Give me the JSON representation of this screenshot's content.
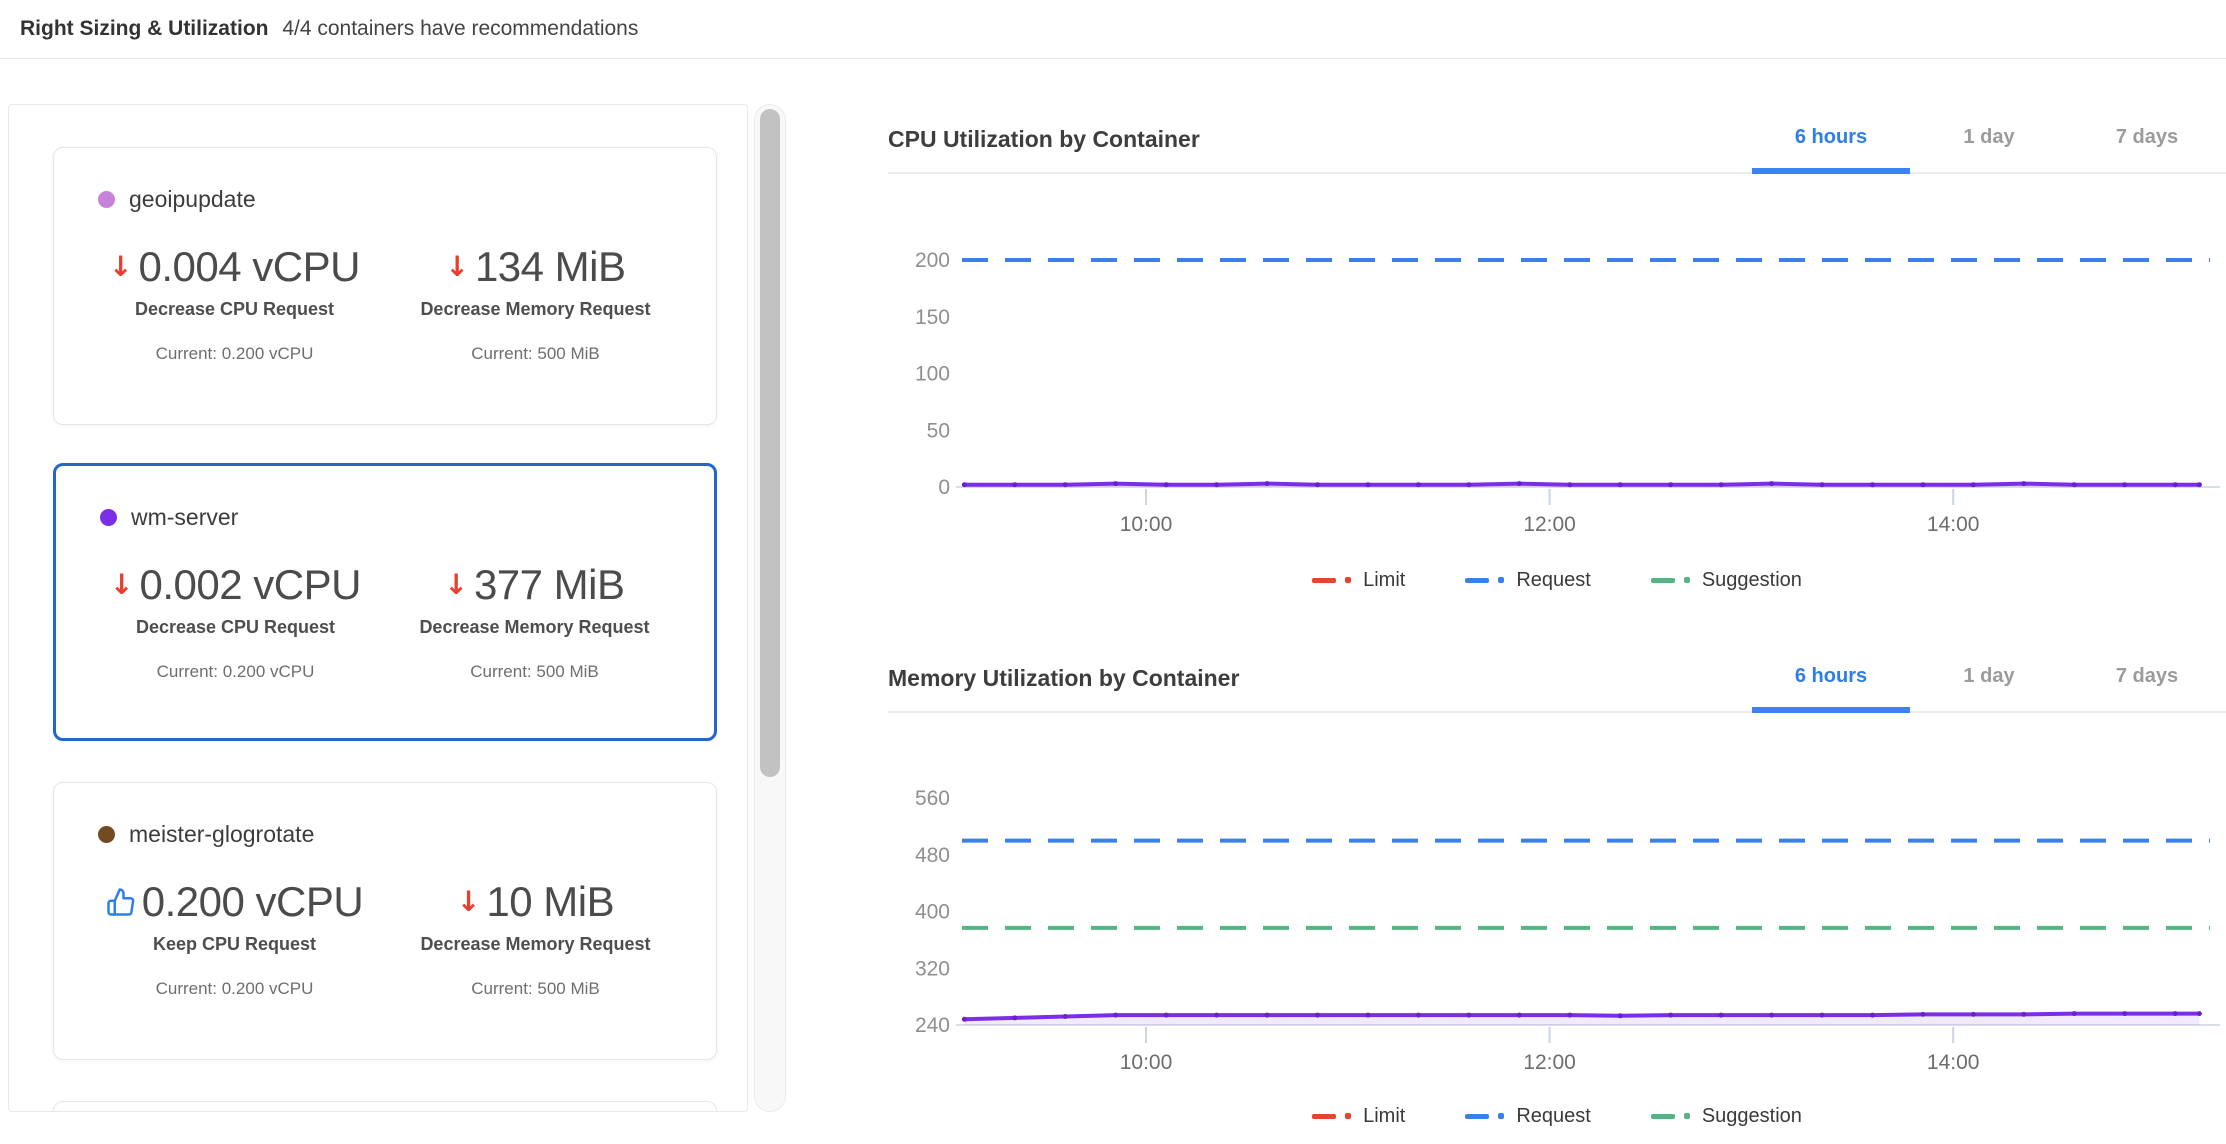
{
  "header": {
    "title": "Right Sizing & Utilization",
    "subtitle": "4/4 containers have recommendations"
  },
  "sidebar": {
    "cards": [
      {
        "name": "geoipupdate",
        "dot_color": "#c583d9",
        "selected": false,
        "cpu": {
          "direction": "decrease",
          "value": "0.004 vCPU",
          "action": "Decrease CPU Request",
          "current": "Current: 0.200 vCPU"
        },
        "memory": {
          "direction": "decrease",
          "value": "134 MiB",
          "action": "Decrease Memory Request",
          "current": "Current: 500 MiB"
        }
      },
      {
        "name": "wm-server",
        "dot_color": "#7a2ee8",
        "selected": true,
        "cpu": {
          "direction": "decrease",
          "value": "0.002 vCPU",
          "action": "Decrease CPU Request",
          "current": "Current: 0.200 vCPU"
        },
        "memory": {
          "direction": "decrease",
          "value": "377 MiB",
          "action": "Decrease Memory Request",
          "current": "Current: 500 MiB"
        }
      },
      {
        "name": "meister-glogrotate",
        "dot_color": "#734a21",
        "selected": false,
        "cpu": {
          "direction": "keep",
          "value": "0.200 vCPU",
          "action": "Keep CPU Request",
          "current": "Current: 0.200 vCPU"
        },
        "memory": {
          "direction": "decrease",
          "value": "10 MiB",
          "action": "Decrease Memory Request",
          "current": "Current: 500 MiB"
        }
      }
    ]
  },
  "tabs": {
    "options": [
      "6 hours",
      "1 day",
      "7 days"
    ],
    "active": "6 hours"
  },
  "cpu_chart": {
    "title": "CPU Utilization by Container"
  },
  "memory_chart": {
    "title": "Memory Utilization by Container"
  },
  "legend": {
    "items": [
      {
        "label": "Limit",
        "color": "#e8432c"
      },
      {
        "label": "Request",
        "color": "#3b7fe8"
      },
      {
        "label": "Suggestion",
        "color": "#53b584"
      }
    ]
  },
  "colors": {
    "accent_blue": "#2e7de9",
    "tab_underline": "#3b82f6",
    "selected_card_border": "#2266cc",
    "usage_purple": "#7a2ee8",
    "arrow_red": "#e8402e",
    "thumb_blue": "#2b7ff2"
  },
  "chart_data": [
    {
      "id": "cpu",
      "type": "line",
      "title": "CPU Utilization by Container",
      "time_range": "6 hours",
      "y_unit": "millicores (0.001 vCPU)",
      "ylim": [
        0,
        230
      ],
      "yticks": [
        0,
        50,
        100,
        150,
        200
      ],
      "xticks": [
        {
          "t": 10,
          "label": "10:00"
        },
        {
          "t": 12,
          "label": "12:00"
        },
        {
          "t": 14,
          "label": "14:00"
        }
      ],
      "grid": false,
      "legend_entries": [
        "Limit",
        "Request",
        "Suggestion"
      ],
      "ref_lines": [
        {
          "name": "Request",
          "value": 200,
          "color": "#3b7fe8"
        }
      ],
      "series": [
        {
          "name": "wm-server usage",
          "color": "#7a2ee8",
          "points": [
            [
              9.1,
              2
            ],
            [
              9.35,
              2
            ],
            [
              9.6,
              2
            ],
            [
              9.85,
              3
            ],
            [
              10.1,
              2
            ],
            [
              10.35,
              2
            ],
            [
              10.6,
              3
            ],
            [
              10.85,
              2
            ],
            [
              11.1,
              2
            ],
            [
              11.35,
              2
            ],
            [
              11.6,
              2
            ],
            [
              11.85,
              3
            ],
            [
              12.1,
              2
            ],
            [
              12.35,
              2
            ],
            [
              12.6,
              2
            ],
            [
              12.85,
              2
            ],
            [
              13.1,
              3
            ],
            [
              13.35,
              2
            ],
            [
              13.6,
              2
            ],
            [
              13.85,
              2
            ],
            [
              14.1,
              2
            ],
            [
              14.35,
              3
            ],
            [
              14.6,
              2
            ],
            [
              14.85,
              2
            ],
            [
              15.1,
              2
            ],
            [
              15.22,
              2
            ]
          ]
        }
      ]
    },
    {
      "id": "memory",
      "type": "line",
      "title": "Memory Utilization by Container",
      "time_range": "6 hours",
      "y_unit": "MiB",
      "ylim": [
        240,
        580
      ],
      "yticks": [
        240,
        320,
        400,
        480,
        560
      ],
      "xticks": [
        {
          "t": 10,
          "label": "10:00"
        },
        {
          "t": 12,
          "label": "12:00"
        },
        {
          "t": 14,
          "label": "14:00"
        }
      ],
      "grid": false,
      "legend_entries": [
        "Limit",
        "Request",
        "Suggestion"
      ],
      "ref_lines": [
        {
          "name": "Request",
          "value": 500,
          "color": "#3b7fe8"
        },
        {
          "name": "Suggestion",
          "value": 377,
          "color": "#53b584"
        }
      ],
      "series": [
        {
          "name": "wm-server usage",
          "color": "#7a2ee8",
          "points": [
            [
              9.1,
              248
            ],
            [
              9.35,
              250
            ],
            [
              9.6,
              252
            ],
            [
              9.85,
              254
            ],
            [
              10.1,
              254
            ],
            [
              10.35,
              254
            ],
            [
              10.6,
              254
            ],
            [
              10.85,
              254
            ],
            [
              11.1,
              254
            ],
            [
              11.35,
              254
            ],
            [
              11.6,
              254
            ],
            [
              11.85,
              254
            ],
            [
              12.1,
              254
            ],
            [
              12.35,
              253
            ],
            [
              12.6,
              254
            ],
            [
              12.85,
              254
            ],
            [
              13.1,
              254
            ],
            [
              13.35,
              254
            ],
            [
              13.6,
              254
            ],
            [
              13.85,
              255
            ],
            [
              14.1,
              255
            ],
            [
              14.35,
              255
            ],
            [
              14.6,
              256
            ],
            [
              14.85,
              256
            ],
            [
              15.1,
              256
            ],
            [
              15.22,
              256
            ]
          ]
        }
      ]
    }
  ]
}
